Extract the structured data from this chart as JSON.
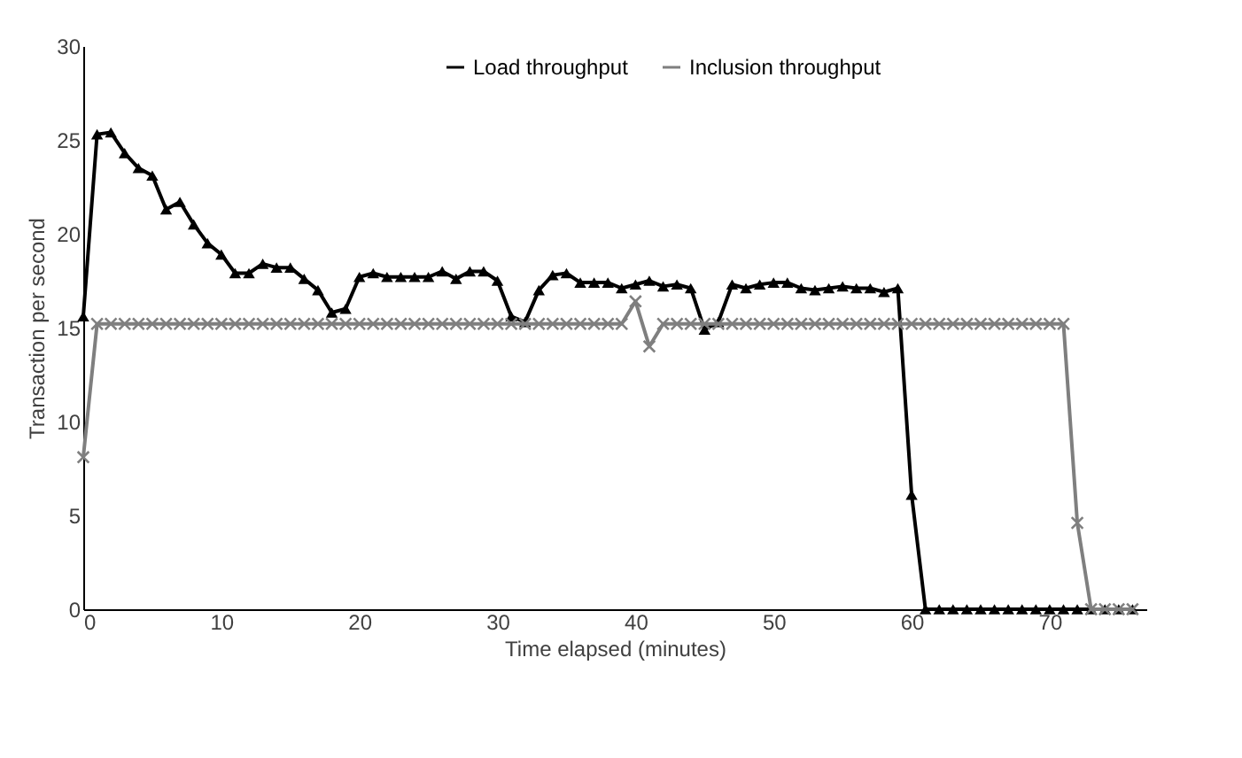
{
  "chart_data": {
    "type": "line",
    "xlabel": "Time elapsed (minutes)",
    "ylabel": "Transaction per second",
    "x": [
      0,
      1,
      2,
      3,
      4,
      5,
      6,
      7,
      8,
      9,
      10,
      11,
      12,
      13,
      14,
      15,
      16,
      17,
      18,
      19,
      20,
      21,
      22,
      23,
      24,
      25,
      26,
      27,
      28,
      29,
      30,
      31,
      32,
      33,
      34,
      35,
      36,
      37,
      38,
      39,
      40,
      41,
      42,
      43,
      44,
      45,
      46,
      47,
      48,
      49,
      50,
      51,
      52,
      53,
      54,
      55,
      56,
      57,
      58,
      59,
      60,
      61,
      62,
      63,
      64,
      65,
      66,
      67,
      68,
      69,
      70,
      71,
      72,
      73,
      74,
      75,
      76
    ],
    "series": [
      {
        "name": "Load throughput",
        "color": "#000000",
        "marker": "triangle",
        "values": [
          15.6,
          25.3,
          25.4,
          24.3,
          23.5,
          23.1,
          21.3,
          21.7,
          20.5,
          19.5,
          18.9,
          17.9,
          17.9,
          18.4,
          18.2,
          18.2,
          17.6,
          17.0,
          15.8,
          16.0,
          17.7,
          17.9,
          17.7,
          17.7,
          17.7,
          17.7,
          18.0,
          17.6,
          18.0,
          18.0,
          17.5,
          15.6,
          15.3,
          17.0,
          17.8,
          17.9,
          17.4,
          17.4,
          17.4,
          17.1,
          17.3,
          17.5,
          17.2,
          17.3,
          17.1,
          14.9,
          15.3,
          17.3,
          17.1,
          17.3,
          17.4,
          17.4,
          17.1,
          17.0,
          17.1,
          17.2,
          17.1,
          17.1,
          16.9,
          17.1,
          6.1,
          0,
          0,
          0,
          0,
          0,
          0,
          0,
          0,
          0,
          0,
          0,
          0,
          0,
          0,
          0,
          0
        ]
      },
      {
        "name": "Inclusion throughput",
        "color": "#7f7f7f",
        "marker": "cross",
        "values": [
          8.1,
          15.2,
          15.2,
          15.2,
          15.2,
          15.2,
          15.2,
          15.2,
          15.2,
          15.2,
          15.2,
          15.2,
          15.2,
          15.2,
          15.2,
          15.2,
          15.2,
          15.2,
          15.2,
          15.2,
          15.2,
          15.2,
          15.2,
          15.2,
          15.2,
          15.2,
          15.2,
          15.2,
          15.2,
          15.2,
          15.2,
          15.2,
          15.2,
          15.2,
          15.2,
          15.2,
          15.2,
          15.2,
          15.2,
          15.2,
          16.4,
          14.0,
          15.2,
          15.2,
          15.2,
          15.2,
          15.2,
          15.2,
          15.2,
          15.2,
          15.2,
          15.2,
          15.2,
          15.2,
          15.2,
          15.2,
          15.2,
          15.2,
          15.2,
          15.2,
          15.2,
          15.2,
          15.2,
          15.2,
          15.2,
          15.2,
          15.2,
          15.2,
          15.2,
          15.2,
          15.2,
          15.2,
          4.6,
          0,
          0,
          0,
          0
        ]
      }
    ],
    "xlim": [
      0,
      77
    ],
    "xticks": [
      0,
      10,
      20,
      30,
      40,
      50,
      60,
      70
    ],
    "ylim": [
      0,
      30
    ],
    "yticks": [
      0,
      5,
      10,
      15,
      20,
      25,
      30
    ],
    "grid": false,
    "legend": "top",
    "line_style": "solid"
  }
}
